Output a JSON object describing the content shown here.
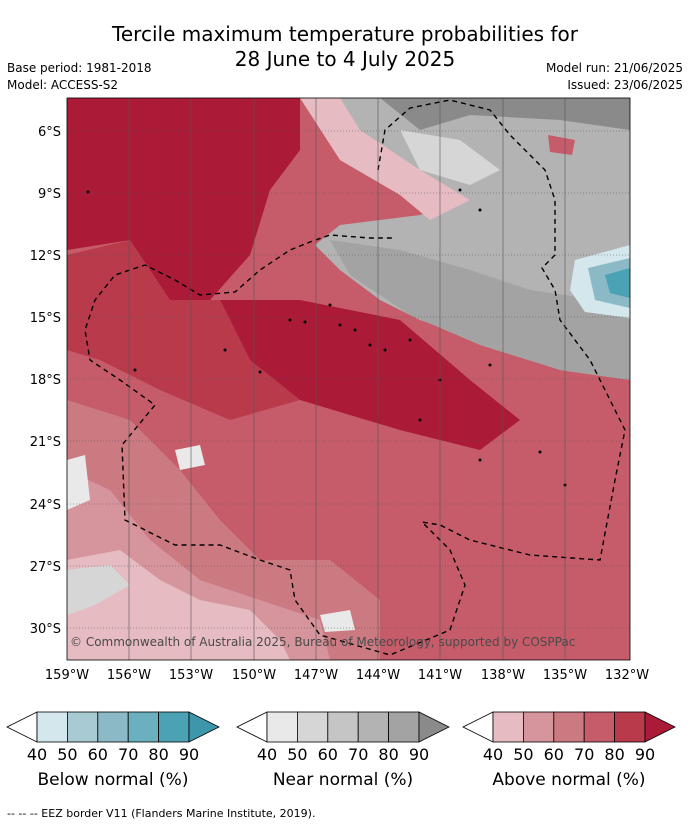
{
  "header": {
    "title_line1": "Tercile maximum temperature probabilities for",
    "title_line2": "28 June to 4 July 2025",
    "base_period": "Base period: 1981-2018",
    "model": "Model: ACCESS-S2",
    "model_run": "Model run: 21/06/2025",
    "issued": "Issued: 23/06/2025"
  },
  "map": {
    "lat_labels": [
      "6°S",
      "9°S",
      "12°S",
      "15°S",
      "18°S",
      "21°S",
      "24°S",
      "27°S",
      "30°S"
    ],
    "lon_labels": [
      "159°W",
      "156°W",
      "153°W",
      "150°W",
      "147°W",
      "144°W",
      "141°W",
      "138°W",
      "135°W",
      "132°W"
    ],
    "copyright": "© Commonwealth of Australia 2025, Bureau of Meteorology, supported by COSPPac"
  },
  "legends": [
    {
      "label": "Below normal (%)",
      "ticks": [
        "40",
        "50",
        "60",
        "70",
        "80",
        "90"
      ],
      "colors": [
        "#ffffff",
        "#d3e7ec",
        "#a8cad2",
        "#8bbac6",
        "#6ab0bf",
        "#4aa2b4",
        "#3d96aa"
      ]
    },
    {
      "label": "Near normal (%)",
      "ticks": [
        "40",
        "50",
        "60",
        "70",
        "80",
        "90"
      ],
      "colors": [
        "#ffffff",
        "#e9e9e9",
        "#d6d6d6",
        "#c5c5c5",
        "#b3b3b3",
        "#a3a3a3",
        "#8a8a8a"
      ]
    },
    {
      "label": "Above normal (%)",
      "ticks": [
        "40",
        "50",
        "60",
        "70",
        "80",
        "90"
      ],
      "colors": [
        "#ffffff",
        "#e6bcc2",
        "#d6949c",
        "#cc7a82",
        "#c65c6a",
        "#b83a4b",
        "#ab1a36"
      ]
    }
  ],
  "footer": "--  --  -- EEZ border V11 (Flanders Marine Institute, 2019)."
}
